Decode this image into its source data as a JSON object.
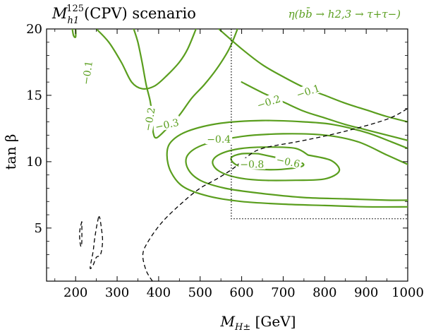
{
  "chart_data": {
    "type": "contour",
    "title": "M_{h1}^{125}(CPV) scenario",
    "title_main": "M",
    "title_sub": "h1",
    "title_sup": "125",
    "title_rest": "(CPV) scenario",
    "legend_text": "η(bb̄ → h2,3 → τ+τ−)",
    "xlabel": "M_{H±} [GeV]",
    "xlabel_main": "M",
    "xlabel_sub": "H±",
    "xlabel_rest": " [GeV]",
    "ylabel": "tan β",
    "xlim": [
      130,
      1000
    ],
    "ylim": [
      1,
      20
    ],
    "xticks": [
      200,
      300,
      400,
      500,
      600,
      700,
      800,
      900,
      1000
    ],
    "xtick_labels": [
      "200",
      "300",
      "400",
      "500",
      "600",
      "700",
      "800",
      "900",
      "1000"
    ],
    "yticks": [
      5,
      10,
      15,
      20
    ],
    "ytick_labels": [
      "5",
      "10",
      "15",
      "20"
    ],
    "colors": {
      "contour": "#5a9e1e",
      "axis": "#000000"
    },
    "contours": [
      {
        "name": "contour-0.1-left",
        "level": "-0.1",
        "points": [
          [
            192,
            20
          ],
          [
            195,
            19.5
          ],
          [
            200,
            19.4
          ],
          [
            200,
            20
          ]
        ]
      },
      {
        "name": "contour-0.1",
        "level": "-0.1",
        "points": [
          [
            250,
            20
          ],
          [
            280,
            19
          ],
          [
            310,
            17.5
          ],
          [
            335,
            16
          ],
          [
            360,
            15.5
          ],
          [
            390,
            15.7
          ],
          [
            420,
            16.5
          ],
          [
            450,
            17.5
          ],
          [
            470,
            18.5
          ],
          [
            490,
            20
          ]
        ]
      },
      {
        "name": "contour-0.2",
        "level": "-0.2",
        "points": [
          [
            340,
            20
          ],
          [
            350,
            19
          ],
          [
            360,
            17.5
          ],
          [
            370,
            15.8
          ],
          [
            380,
            14.5
          ],
          [
            385,
            13.2
          ],
          [
            387,
            12.2
          ],
          [
            395,
            11.8
          ],
          [
            420,
            12.5
          ],
          [
            450,
            13.5
          ],
          [
            480,
            14.8
          ],
          [
            510,
            15.8
          ],
          [
            540,
            17
          ],
          [
            570,
            18.5
          ],
          [
            590,
            20
          ]
        ]
      },
      {
        "name": "contour-0.1-right",
        "level": "-0.1",
        "points": [
          [
            545,
            20
          ],
          [
            600,
            18.5
          ],
          [
            650,
            17.3
          ],
          [
            700,
            16.4
          ],
          [
            750,
            15.6
          ],
          [
            800,
            15
          ],
          [
            850,
            14.4
          ],
          [
            900,
            13.9
          ],
          [
            950,
            13.4
          ],
          [
            1000,
            13
          ]
        ]
      },
      {
        "name": "contour-0.2-right",
        "level": "-0.2",
        "points": [
          [
            600,
            16
          ],
          [
            650,
            15.2
          ],
          [
            700,
            14.5
          ],
          [
            750,
            13.8
          ],
          [
            800,
            13.3
          ],
          [
            850,
            12.8
          ],
          [
            900,
            12.4
          ],
          [
            950,
            12
          ],
          [
            1000,
            11.6
          ]
        ]
      },
      {
        "name": "contour-0.3",
        "level": "-0.3",
        "points": [
          [
            1000,
            11
          ],
          [
            960,
            11.5
          ],
          [
            900,
            12.2
          ],
          [
            820,
            12.8
          ],
          [
            750,
            13
          ],
          [
            650,
            13.1
          ],
          [
            550,
            12.9
          ],
          [
            470,
            12.3
          ],
          [
            430,
            11.5
          ],
          [
            420,
            10.5
          ],
          [
            430,
            9.2
          ],
          [
            460,
            8.1
          ],
          [
            520,
            7.4
          ],
          [
            600,
            7
          ],
          [
            700,
            6.8
          ],
          [
            800,
            6.7
          ],
          [
            900,
            6.6
          ],
          [
            1000,
            6.6
          ]
        ]
      },
      {
        "name": "contour-0.4",
        "level": "-0.4",
        "points": [
          [
            1000,
            9.8
          ],
          [
            950,
            10.5
          ],
          [
            880,
            11.5
          ],
          [
            800,
            12
          ],
          [
            700,
            12.1
          ],
          [
            600,
            11.9
          ],
          [
            510,
            11.3
          ],
          [
            470,
            10.5
          ],
          [
            470,
            9.5
          ],
          [
            500,
            8.6
          ],
          [
            560,
            8
          ],
          [
            650,
            7.6
          ],
          [
            750,
            7.3
          ],
          [
            850,
            7.2
          ],
          [
            950,
            7.1
          ],
          [
            1000,
            7.1
          ]
        ]
      },
      {
        "name": "contour-0.6",
        "level": "-0.6",
        "points": [
          [
            760,
            10.5
          ],
          [
            730,
            11
          ],
          [
            670,
            11.1
          ],
          [
            600,
            11
          ],
          [
            550,
            10.6
          ],
          [
            530,
            10
          ],
          [
            545,
            9.3
          ],
          [
            590,
            8.8
          ],
          [
            650,
            8.6
          ],
          [
            730,
            8.6
          ],
          [
            800,
            8.7
          ],
          [
            835,
            9.3
          ],
          [
            815,
            10.1
          ],
          [
            760,
            10.5
          ]
        ]
      },
      {
        "name": "contour-0.8",
        "level": "-0.8",
        "points": [
          [
            640,
            10.6
          ],
          [
            600,
            10.6
          ],
          [
            575,
            10.3
          ],
          [
            585,
            9.8
          ],
          [
            620,
            9.5
          ],
          [
            680,
            9.4
          ],
          [
            740,
            9.6
          ],
          [
            745,
            9.9
          ],
          [
            700,
            10.2
          ],
          [
            640,
            10.6
          ]
        ]
      }
    ],
    "contour_labels": [
      {
        "text": "−0.1",
        "x": 228,
        "y": 16.7,
        "rot": 82
      },
      {
        "text": "−0.2",
        "x": 378,
        "y": 13.2,
        "rot": 80
      },
      {
        "text": "−0.1",
        "x": 760,
        "y": 15.3,
        "rot": 18
      },
      {
        "text": "−0.2",
        "x": 665,
        "y": 14.5,
        "rot": 18
      },
      {
        "text": "−0.3",
        "x": 420,
        "y": 12.8,
        "rot": 12
      },
      {
        "text": "−0.4",
        "x": 545,
        "y": 11.7,
        "rot": 0
      },
      {
        "text": "−0.6",
        "x": 712,
        "y": 10.0,
        "rot": -12
      },
      {
        "text": "−0.8",
        "x": 625,
        "y": 9.8,
        "rot": 0
      }
    ],
    "dashed_lines": [
      {
        "name": "dashed-limit-main",
        "points": [
          [
            385,
            1
          ],
          [
            370,
            1.8
          ],
          [
            362,
            3
          ],
          [
            375,
            4
          ],
          [
            410,
            5.5
          ],
          [
            460,
            7
          ],
          [
            500,
            8
          ],
          [
            540,
            8.7
          ],
          [
            580,
            9.5
          ],
          [
            610,
            10.3
          ],
          [
            650,
            11
          ],
          [
            750,
            11.6
          ],
          [
            850,
            12.3
          ],
          [
            950,
            13.2
          ],
          [
            1000,
            14
          ]
        ]
      },
      {
        "name": "dashed-island-1",
        "points": [
          [
            215,
            5.5
          ],
          [
            210,
            4.8
          ],
          [
            210,
            4.1
          ],
          [
            213,
            3.6
          ],
          [
            215,
            4
          ],
          [
            215,
            5.5
          ]
        ]
      },
      {
        "name": "dashed-island-2",
        "points": [
          [
            255,
            5.8
          ],
          [
            250,
            5
          ],
          [
            245,
            4
          ],
          [
            242,
            3.2
          ],
          [
            235,
            2
          ],
          [
            242,
            2.2
          ],
          [
            250,
            2.8
          ],
          [
            260,
            3
          ],
          [
            265,
            4
          ],
          [
            262,
            5
          ],
          [
            258,
            5.8
          ],
          [
            255,
            5.8
          ]
        ]
      }
    ],
    "dotted_line": {
      "name": "dotted-excluded-region",
      "points": [
        [
          575,
          20
        ],
        [
          575,
          5.7
        ],
        [
          1000,
          5.7
        ]
      ]
    }
  }
}
